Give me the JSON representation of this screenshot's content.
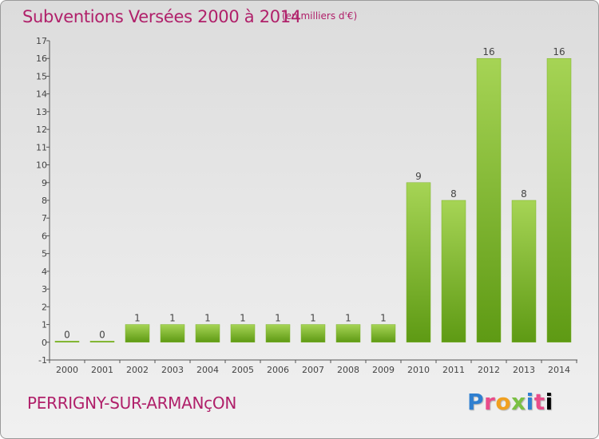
{
  "title": "Subventions Versées 2000 à 2014",
  "unit_note": "(en milliers d'€)",
  "commune": "PERRIGNY-SUR-ARMANçON",
  "logo_text": "Proxiti",
  "colors": {
    "title": "#b0206a",
    "bar_light": "#a6d455",
    "bar_dark": "#5e9a14",
    "axis": "#555555"
  },
  "chart_data": {
    "type": "bar",
    "categories": [
      "2000",
      "2001",
      "2002",
      "2003",
      "2004",
      "2005",
      "2006",
      "2007",
      "2008",
      "2009",
      "2010",
      "2011",
      "2012",
      "2013",
      "2014"
    ],
    "values": [
      0,
      0,
      1,
      1,
      1,
      1,
      1,
      1,
      1,
      1,
      9,
      8,
      16,
      8,
      16
    ],
    "data_labels": [
      "0",
      "0",
      "1",
      "1",
      "1",
      "1",
      "1",
      "1",
      "1",
      "1",
      "9",
      "8",
      "16",
      "8",
      "16"
    ],
    "yticks": [
      -1,
      0,
      1,
      2,
      3,
      4,
      5,
      6,
      7,
      8,
      9,
      10,
      11,
      12,
      13,
      14,
      15,
      16,
      17
    ],
    "ylim": [
      -1,
      17
    ],
    "title": "Subventions Versées 2000 à 2014",
    "xlabel": "",
    "ylabel": "",
    "grid": false
  }
}
